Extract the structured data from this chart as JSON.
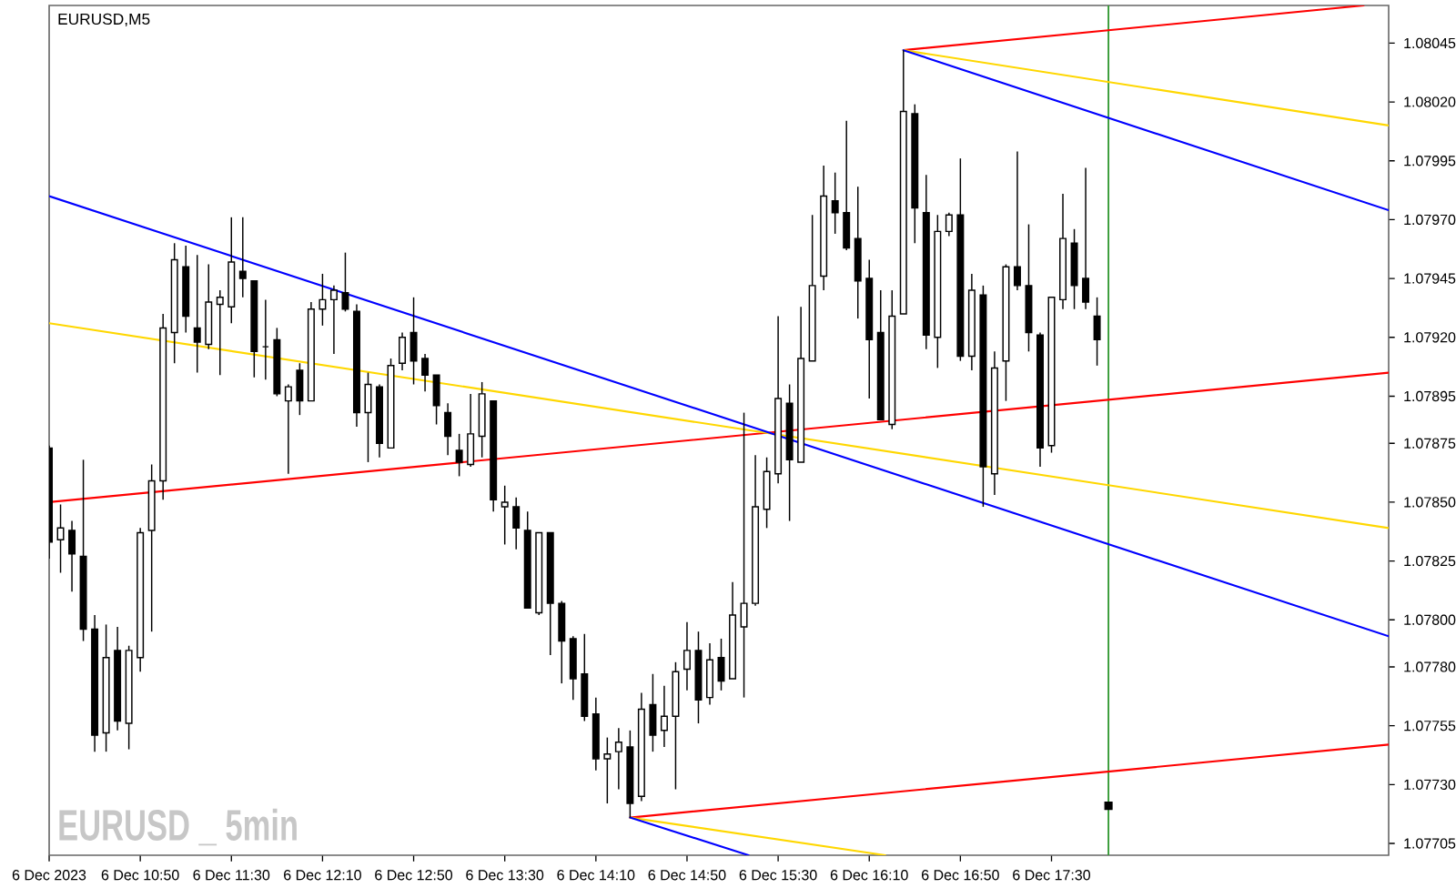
{
  "chart_data": {
    "type": "candlestick",
    "title": "EURUSD,M5",
    "annotations": [
      "EURUSD _ 5min"
    ],
    "x": [
      "2023-12-06T10:10",
      "2023-12-06T10:15",
      "2023-12-06T10:20",
      "2023-12-06T10:25",
      "2023-12-06T10:30",
      "2023-12-06T10:35",
      "2023-12-06T10:40",
      "2023-12-06T10:45",
      "2023-12-06T10:50",
      "2023-12-06T10:55",
      "2023-12-06T11:00",
      "2023-12-06T11:05",
      "2023-12-06T11:10",
      "2023-12-06T11:15",
      "2023-12-06T11:20",
      "2023-12-06T11:25",
      "2023-12-06T11:30",
      "2023-12-06T11:35",
      "2023-12-06T11:40",
      "2023-12-06T11:45",
      "2023-12-06T11:50",
      "2023-12-06T11:55",
      "2023-12-06T12:00",
      "2023-12-06T12:05",
      "2023-12-06T12:10",
      "2023-12-06T12:15",
      "2023-12-06T12:20",
      "2023-12-06T12:25",
      "2023-12-06T12:30",
      "2023-12-06T12:35",
      "2023-12-06T12:40",
      "2023-12-06T12:45",
      "2023-12-06T12:50",
      "2023-12-06T12:55",
      "2023-12-06T13:00",
      "2023-12-06T13:05",
      "2023-12-06T13:10",
      "2023-12-06T13:15",
      "2023-12-06T13:20",
      "2023-12-06T13:25",
      "2023-12-06T13:30",
      "2023-12-06T13:35",
      "2023-12-06T13:40",
      "2023-12-06T13:45",
      "2023-12-06T13:50",
      "2023-12-06T13:55",
      "2023-12-06T14:00",
      "2023-12-06T14:05",
      "2023-12-06T14:10",
      "2023-12-06T14:15",
      "2023-12-06T14:20",
      "2023-12-06T14:25",
      "2023-12-06T14:30",
      "2023-12-06T14:35",
      "2023-12-06T14:40",
      "2023-12-06T14:45",
      "2023-12-06T14:50",
      "2023-12-06T14:55",
      "2023-12-06T15:00",
      "2023-12-06T15:05",
      "2023-12-06T15:10",
      "2023-12-06T15:15",
      "2023-12-06T15:20",
      "2023-12-06T15:25",
      "2023-12-06T15:30",
      "2023-12-06T15:35",
      "2023-12-06T15:40",
      "2023-12-06T15:45",
      "2023-12-06T15:50",
      "2023-12-06T15:55",
      "2023-12-06T16:00",
      "2023-12-06T16:05",
      "2023-12-06T16:10",
      "2023-12-06T16:15",
      "2023-12-06T16:20",
      "2023-12-06T16:25",
      "2023-12-06T16:30",
      "2023-12-06T16:35",
      "2023-12-06T16:40",
      "2023-12-06T16:45",
      "2023-12-06T16:50",
      "2023-12-06T16:55",
      "2023-12-06T17:00",
      "2023-12-06T17:05",
      "2023-12-06T17:10",
      "2023-12-06T17:15",
      "2023-12-06T17:20",
      "2023-12-06T17:25",
      "2023-12-06T17:30",
      "2023-12-06T17:35",
      "2023-12-06T17:40",
      "2023-12-06T17:45",
      "2023-12-06T17:50"
    ],
    "ohlc": [
      [
        1.07873,
        1.07874,
        1.07826,
        1.07833
      ],
      [
        1.07834,
        1.07849,
        1.0782,
        1.07839
      ],
      [
        1.07838,
        1.07842,
        1.07812,
        1.07828
      ],
      [
        1.07827,
        1.07868,
        1.07791,
        1.07796
      ],
      [
        1.07796,
        1.07802,
        1.07744,
        1.07751
      ],
      [
        1.07752,
        1.07798,
        1.07744,
        1.07784
      ],
      [
        1.07787,
        1.07797,
        1.07753,
        1.07757
      ],
      [
        1.07756,
        1.07789,
        1.07745,
        1.07787
      ],
      [
        1.07784,
        1.07839,
        1.07778,
        1.07837
      ],
      [
        1.07838,
        1.07866,
        1.07795,
        1.07859
      ],
      [
        1.07859,
        1.0793,
        1.07851,
        1.07924
      ],
      [
        1.07922,
        1.0796,
        1.07909,
        1.07953
      ],
      [
        1.0795,
        1.07959,
        1.07922,
        1.07929
      ],
      [
        1.07924,
        1.07955,
        1.07905,
        1.07918
      ],
      [
        1.07917,
        1.07951,
        1.07915,
        1.07935
      ],
      [
        1.07934,
        1.0794,
        1.07904,
        1.07937
      ],
      [
        1.07933,
        1.07971,
        1.07926,
        1.07952
      ],
      [
        1.07948,
        1.07971,
        1.07937,
        1.07945
      ],
      [
        1.07944,
        1.07944,
        1.07903,
        1.07914
      ],
      [
        1.07916,
        1.07936,
        1.07902,
        1.07916
      ],
      [
        1.07919,
        1.07924,
        1.07895,
        1.07896
      ],
      [
        1.07893,
        1.079,
        1.07862,
        1.07899
      ],
      [
        1.07906,
        1.07909,
        1.07887,
        1.07893
      ],
      [
        1.07893,
        1.07935,
        1.07893,
        1.07932
      ],
      [
        1.07932,
        1.07947,
        1.07925,
        1.07936
      ],
      [
        1.07936,
        1.07942,
        1.07913,
        1.0794
      ],
      [
        1.07939,
        1.07956,
        1.07931,
        1.07932
      ],
      [
        1.07931,
        1.07934,
        1.07882,
        1.07888
      ],
      [
        1.07888,
        1.07905,
        1.07867,
        1.079
      ],
      [
        1.07899,
        1.079,
        1.07869,
        1.07875
      ],
      [
        1.07873,
        1.07911,
        1.07873,
        1.07908
      ],
      [
        1.07909,
        1.07922,
        1.07906,
        1.0792
      ],
      [
        1.07922,
        1.07937,
        1.079,
        1.0791
      ],
      [
        1.07911,
        1.07913,
        1.07897,
        1.07904
      ],
      [
        1.07904,
        1.07904,
        1.07883,
        1.07891
      ],
      [
        1.07888,
        1.07892,
        1.0787,
        1.07878
      ],
      [
        1.07872,
        1.07879,
        1.07861,
        1.07867
      ],
      [
        1.07866,
        1.07896,
        1.07865,
        1.07879
      ],
      [
        1.07878,
        1.07901,
        1.07869,
        1.07896
      ],
      [
        1.07893,
        1.07893,
        1.07846,
        1.07851
      ],
      [
        1.07848,
        1.07857,
        1.07832,
        1.0785
      ],
      [
        1.07848,
        1.07852,
        1.0783,
        1.07839
      ],
      [
        1.07838,
        1.07846,
        1.07805,
        1.07805
      ],
      [
        1.07803,
        1.07837,
        1.07802,
        1.07837
      ],
      [
        1.07837,
        1.07837,
        1.07785,
        1.07807
      ],
      [
        1.07807,
        1.07808,
        1.07773,
        1.07791
      ],
      [
        1.07792,
        1.07793,
        1.07766,
        1.07775
      ],
      [
        1.07777,
        1.07794,
        1.07757,
        1.07759
      ],
      [
        1.0776,
        1.07767,
        1.07736,
        1.07741
      ],
      [
        1.07741,
        1.0775,
        1.07722,
        1.07743
      ],
      [
        1.07744,
        1.07754,
        1.07728,
        1.07748
      ],
      [
        1.07746,
        1.07753,
        1.07716,
        1.07722
      ],
      [
        1.07725,
        1.07769,
        1.07723,
        1.07762
      ],
      [
        1.07764,
        1.07777,
        1.07744,
        1.07751
      ],
      [
        1.07753,
        1.07772,
        1.07746,
        1.07759
      ],
      [
        1.07759,
        1.07782,
        1.07728,
        1.07778
      ],
      [
        1.07779,
        1.07799,
        1.0777,
        1.07787
      ],
      [
        1.07787,
        1.07795,
        1.07756,
        1.07766
      ],
      [
        1.07767,
        1.0779,
        1.07764,
        1.07783
      ],
      [
        1.07784,
        1.07792,
        1.0777,
        1.07774
      ],
      [
        1.07775,
        1.07816,
        1.07775,
        1.07802
      ],
      [
        1.07797,
        1.07888,
        1.07767,
        1.07807
      ],
      [
        1.07807,
        1.0787,
        1.07806,
        1.07848
      ],
      [
        1.07847,
        1.07869,
        1.07839,
        1.07863
      ],
      [
        1.07862,
        1.07929,
        1.07858,
        1.07894
      ],
      [
        1.07892,
        1.079,
        1.07842,
        1.07868
      ],
      [
        1.07867,
        1.07933,
        1.07867,
        1.07911
      ],
      [
        1.0791,
        1.07972,
        1.0791,
        1.07942
      ],
      [
        1.07946,
        1.07993,
        1.0794,
        1.0798
      ],
      [
        1.07978,
        1.0799,
        1.07964,
        1.07973
      ],
      [
        1.07973,
        1.08012,
        1.07957,
        1.07958
      ],
      [
        1.07962,
        1.07984,
        1.07928,
        1.07944
      ],
      [
        1.07945,
        1.07953,
        1.07894,
        1.07919
      ],
      [
        1.07922,
        1.0794,
        1.07885,
        1.07885
      ],
      [
        1.07883,
        1.0794,
        1.07881,
        1.07929
      ],
      [
        1.0793,
        1.08042,
        1.0793,
        1.08016
      ],
      [
        1.08015,
        1.08019,
        1.0796,
        1.07975
      ],
      [
        1.07973,
        1.07989,
        1.07915,
        1.07921
      ],
      [
        1.0792,
        1.07972,
        1.07907,
        1.07965
      ],
      [
        1.07965,
        1.07973,
        1.07963,
        1.07972
      ],
      [
        1.07972,
        1.07996,
        1.0791,
        1.07912
      ],
      [
        1.07912,
        1.07947,
        1.07906,
        1.0794
      ],
      [
        1.07938,
        1.07942,
        1.07848,
        1.07865
      ],
      [
        1.07862,
        1.07914,
        1.07853,
        1.07907
      ],
      [
        1.0791,
        1.07951,
        1.07893,
        1.0795
      ],
      [
        1.0795,
        1.07999,
        1.0794,
        1.07942
      ],
      [
        1.07942,
        1.07968,
        1.07914,
        1.07922
      ],
      [
        1.07921,
        1.07922,
        1.07865,
        1.07873
      ],
      [
        1.07874,
        1.07937,
        1.07871,
        1.07937
      ],
      [
        1.07936,
        1.07981,
        1.07932,
        1.07962
      ],
      [
        1.0796,
        1.07966,
        1.07932,
        1.07942
      ],
      [
        1.07945,
        1.07992,
        1.07932,
        1.07935
      ],
      [
        1.07929,
        1.07937,
        1.07908,
        1.07919
      ]
    ],
    "series": [
      {
        "type": "line",
        "color": "#ff0000",
        "x": [
          "2023-12-06T10:10",
          "2023-12-06T19:58"
        ],
        "values": [
          1.0785,
          1.07905
        ]
      },
      {
        "type": "line",
        "color": "#ffd700",
        "x": [
          "2023-12-06T10:10",
          "2023-12-06T19:58"
        ],
        "values": [
          1.07926,
          1.07839
        ]
      },
      {
        "type": "line",
        "color": "#0000ff",
        "x": [
          "2023-12-06T10:10",
          "2023-12-06T19:58"
        ],
        "values": [
          1.0798,
          1.07793
        ]
      },
      {
        "type": "line",
        "color": "#ff0000",
        "x": [
          "2023-12-06T16:25",
          "2023-12-06T19:47"
        ],
        "values": [
          1.08042,
          1.08061
        ]
      },
      {
        "type": "line",
        "color": "#ffd700",
        "x": [
          "2023-12-06T16:25",
          "2023-12-06T19:58"
        ],
        "values": [
          1.08042,
          1.0801
        ]
      },
      {
        "type": "line",
        "color": "#0000ff",
        "x": [
          "2023-12-06T16:25",
          "2023-12-06T19:58"
        ],
        "values": [
          1.08042,
          1.07974
        ]
      },
      {
        "type": "line",
        "color": "#ff0000",
        "x": [
          "2023-12-06T14:25",
          "2023-12-06T19:58"
        ],
        "values": [
          1.07716,
          1.07747
        ]
      },
      {
        "type": "line",
        "color": "#ffd700",
        "x": [
          "2023-12-06T14:25",
          "2023-12-06T16:17"
        ],
        "values": [
          1.07716,
          1.077
        ]
      },
      {
        "type": "line",
        "color": "#0000ff",
        "x": [
          "2023-12-06T14:25",
          "2023-12-06T15:17"
        ],
        "values": [
          1.07716,
          1.077
        ]
      },
      {
        "type": "scatter",
        "marker": "square",
        "color": "#000000",
        "x": [
          "2023-12-06T17:55"
        ],
        "values": [
          1.07721
        ]
      }
    ],
    "ref_lines": [
      {
        "axis": "x",
        "value": "2023-12-06T17:55",
        "color": "#339933"
      }
    ],
    "xlim": [
      "2023-12-06T10:10",
      "2023-12-06T19:58"
    ],
    "ylim": [
      1.077,
      1.08061
    ],
    "xticks": [
      {
        "value": "2023-12-06T10:10",
        "label": "6 Dec 2023"
      },
      {
        "value": "2023-12-06T10:50",
        "label": "6 Dec 10:50"
      },
      {
        "value": "2023-12-06T11:30",
        "label": "6 Dec 11:30"
      },
      {
        "value": "2023-12-06T12:10",
        "label": "6 Dec 12:10"
      },
      {
        "value": "2023-12-06T12:50",
        "label": "6 Dec 12:50"
      },
      {
        "value": "2023-12-06T13:30",
        "label": "6 Dec 13:30"
      },
      {
        "value": "2023-12-06T14:10",
        "label": "6 Dec 14:10"
      },
      {
        "value": "2023-12-06T14:50",
        "label": "6 Dec 14:50"
      },
      {
        "value": "2023-12-06T15:30",
        "label": "6 Dec 15:30"
      },
      {
        "value": "2023-12-06T16:10",
        "label": "6 Dec 16:10"
      },
      {
        "value": "2023-12-06T16:50",
        "label": "6 Dec 16:50"
      },
      {
        "value": "2023-12-06T17:30",
        "label": "6 Dec 17:30"
      }
    ],
    "yticks": [
      1.08045,
      {
        "value": 1.0802,
        "label": "1.08020"
      },
      1.07995,
      {
        "value": 1.0797,
        "label": "1.07970"
      },
      1.07945,
      {
        "value": 1.0792,
        "label": "1.07920"
      },
      1.07895,
      1.07875,
      {
        "value": 1.0785,
        "label": "1.07850"
      },
      1.07825,
      {
        "value": 1.078,
        "label": "1.07800"
      },
      {
        "value": 1.0778,
        "label": "1.07780"
      },
      1.07755,
      {
        "value": 1.0773,
        "label": "1.07730"
      },
      1.07705
    ]
  }
}
